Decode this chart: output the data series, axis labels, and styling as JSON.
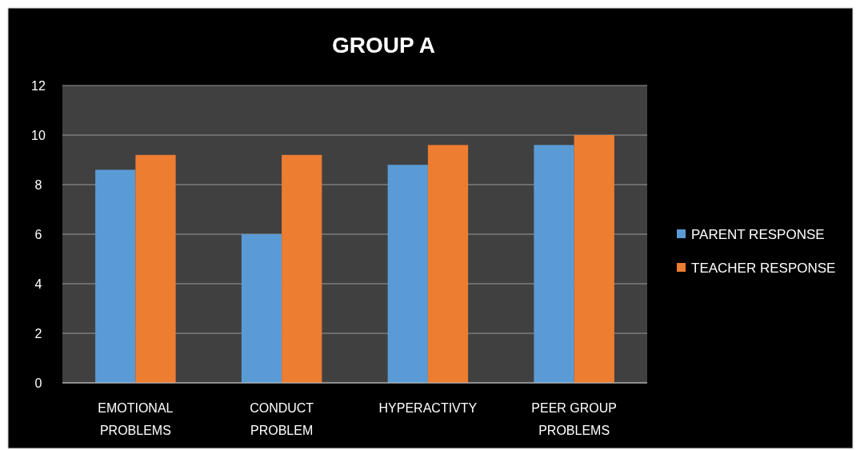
{
  "chart_data": {
    "type": "bar",
    "title": "GROUP A",
    "categories": [
      "EMOTIONAL PROBLEMS",
      "CONDUCT PROBLEM",
      "HYPERACTIVTY",
      "PEER GROUP PROBLEMS"
    ],
    "series": [
      {
        "name": "PARENT RESPONSE",
        "color": "#5b9bd5",
        "values": [
          8.6,
          6.0,
          8.8,
          9.6
        ]
      },
      {
        "name": "TEACHER RESPONSE",
        "color": "#ed7d31",
        "values": [
          9.2,
          9.2,
          9.6,
          10.0
        ]
      }
    ],
    "ylim": [
      0,
      12
    ],
    "yticks": [
      0,
      2,
      4,
      6,
      8,
      10,
      12
    ],
    "grid": "y",
    "legend": "right"
  }
}
